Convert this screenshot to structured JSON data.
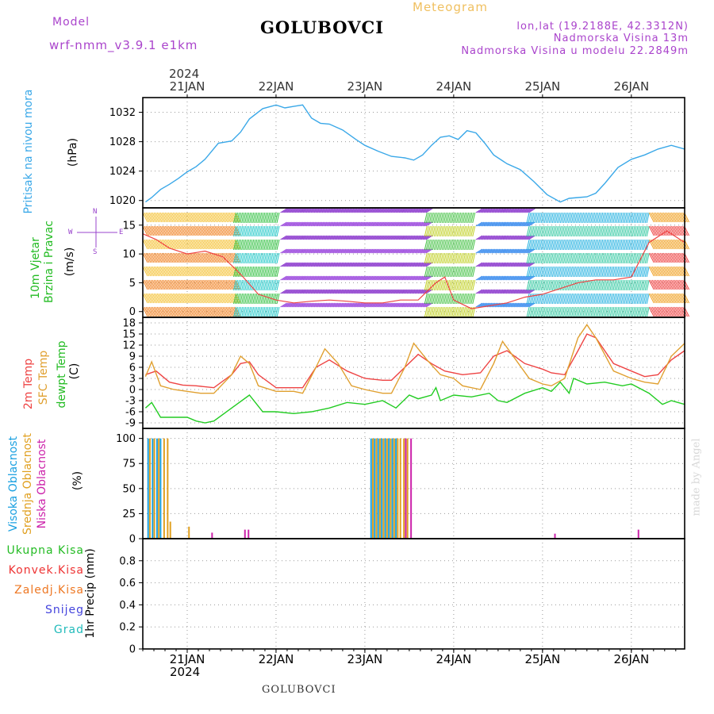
{
  "header": {
    "model_label": "Model",
    "model_name": "wrf-nmm_v3.9.1 e1km",
    "station": "GOLUBOVCI",
    "meteogram": "Meteogram",
    "lonlat": "lon,lat (19.2188E, 42.3312N)",
    "altitude": "Nadmorska Visina 13m",
    "model_altitude": "Nadmorska Visina u modelu 22.2849m",
    "footer_station": "GOLUBOVCI",
    "credit": "made by Angel"
  },
  "time_axis": {
    "year": "2024",
    "day_labels": [
      "21JAN",
      "22JAN",
      "23JAN",
      "24JAN",
      "25JAN",
      "26JAN"
    ],
    "day_positions": [
      1,
      2,
      3,
      4,
      5,
      6
    ]
  },
  "panels": {
    "pressure": {
      "title": "Pritisak na nivou mora",
      "unit": "(hPa)"
    },
    "wind": {
      "title1": "10m Vjetar",
      "title2": "Brzina i Pravac",
      "unit": "(m/s)",
      "compass": {
        "n": "N",
        "s": "S",
        "w": "W",
        "e": "E"
      }
    },
    "temperature": {
      "title1": "2m Temp",
      "title2": "SFC Temp",
      "title3": "dewpt Temp",
      "unit": "(C)"
    },
    "cloud": {
      "title1": "Visoka Oblacnost",
      "title2": "Srednja Oblacnost",
      "title3": "Niska Oblacnost",
      "unit": "(%)"
    },
    "precip": {
      "legend": [
        "Ukupna Kisa",
        "Konvek.Kisa",
        "Zaledj.Kisa",
        "Snijeg",
        "Grad"
      ],
      "axis_label": "1hr Precip (mm)"
    }
  },
  "colors": {
    "pressure": "#3aa8e8",
    "temp2m": "#ee4444",
    "sfc": "#e0a030",
    "dew": "#22cc22",
    "high_cloud": "#1aa0e0",
    "mid_cloud": "#e0a020",
    "low_cloud": "#cc22aa",
    "purple": "#9944cc",
    "total_rain": "#22bb22",
    "conv_rain": "#ee3333",
    "frz_rain": "#ee7722",
    "snow": "#4444dd",
    "hail": "#22bbbb"
  },
  "chart_data": [
    {
      "type": "line",
      "panel": "pressure",
      "title": "",
      "ylabel": "Pritisak na nivou mora (hPa)",
      "ylim": [
        1019,
        1034
      ],
      "yticks": [
        1020,
        1024,
        1028,
        1032
      ],
      "series": [
        {
          "x": [
            0.53,
            0.6,
            0.7,
            0.8,
            0.9,
            1.0,
            1.1,
            1.2,
            1.35,
            1.5,
            1.6,
            1.7,
            1.85,
            2.0,
            2.1,
            2.2,
            2.3,
            2.4,
            2.5,
            2.6,
            2.75,
            2.9,
            3.0,
            3.15,
            3.3,
            3.45,
            3.55,
            3.65,
            3.75,
            3.85,
            3.95,
            4.05,
            4.15,
            4.25,
            4.35,
            4.45,
            4.6,
            4.75,
            4.9,
            5.05,
            5.2,
            5.3,
            5.4,
            5.5,
            5.6,
            5.7,
            5.85,
            6.0,
            6.15,
            6.3,
            6.45,
            6.6
          ],
          "values": [
            1019.8,
            1020.4,
            1021.5,
            1022.2,
            1023.0,
            1023.9,
            1024.6,
            1025.6,
            1027.8,
            1028.1,
            1029.3,
            1031.1,
            1032.5,
            1033.0,
            1032.6,
            1032.8,
            1033.0,
            1031.2,
            1030.5,
            1030.4,
            1029.6,
            1028.3,
            1027.5,
            1026.7,
            1026.0,
            1025.8,
            1025.5,
            1026.2,
            1027.5,
            1028.6,
            1028.8,
            1028.3,
            1029.5,
            1029.2,
            1027.8,
            1026.2,
            1025.0,
            1024.2,
            1022.6,
            1020.8,
            1019.8,
            1020.3,
            1020.4,
            1020.5,
            1021.0,
            1022.3,
            1024.5,
            1025.6,
            1026.2,
            1027.0,
            1027.5,
            1027.0
          ],
          "color": "#3aa8e8"
        }
      ]
    },
    {
      "type": "line",
      "panel": "wind",
      "title": "",
      "ylabel": "10m Vjetar Brzina i Pravac (m/s)",
      "ylim": [
        -1,
        18
      ],
      "yticks": [
        0,
        5,
        10,
        15
      ],
      "series": [
        {
          "x": [
            0.5,
            0.65,
            0.8,
            1.0,
            1.2,
            1.4,
            1.6,
            1.8,
            2.0,
            2.2,
            2.4,
            2.6,
            2.8,
            3.0,
            3.2,
            3.4,
            3.6,
            3.8,
            3.9,
            4.0,
            4.2,
            4.4,
            4.6,
            4.8,
            5.0,
            5.2,
            5.4,
            5.6,
            5.8,
            6.0,
            6.2,
            6.4,
            6.6
          ],
          "values": [
            13.5,
            12.5,
            11.0,
            10.0,
            10.5,
            9.5,
            6.5,
            3.0,
            2.0,
            1.5,
            1.8,
            2.0,
            1.8,
            1.5,
            1.5,
            2.0,
            2.0,
            5.0,
            6.0,
            2.0,
            0.5,
            1.0,
            1.5,
            2.5,
            3.0,
            4.0,
            5.0,
            5.5,
            5.5,
            6.0,
            12.0,
            14.0,
            12.0
          ],
          "color": "#ee4444"
        }
      ]
    },
    {
      "type": "line",
      "panel": "temperature",
      "title": "",
      "ylabel": "2m Temp / SFC Temp / dewpt Temp (C)",
      "ylim": [
        -10.5,
        19.5
      ],
      "yticks": [
        -9,
        -6,
        -3,
        0,
        3,
        6,
        9,
        12,
        15,
        18
      ],
      "series": [
        {
          "name": "2m Temp",
          "x": [
            0.53,
            0.65,
            0.8,
            0.95,
            1.1,
            1.3,
            1.5,
            1.6,
            1.7,
            1.8,
            2.0,
            2.2,
            2.3,
            2.45,
            2.6,
            2.8,
            3.0,
            3.2,
            3.3,
            3.45,
            3.6,
            3.75,
            3.9,
            4.1,
            4.3,
            4.45,
            4.6,
            4.8,
            5.0,
            5.1,
            5.25,
            5.4,
            5.5,
            5.6,
            5.8,
            6.0,
            6.15,
            6.3,
            6.45,
            6.6
          ],
          "values": [
            4.0,
            5.0,
            2.0,
            1.2,
            1.0,
            0.5,
            4.0,
            7.0,
            7.5,
            4.0,
            0.5,
            0.5,
            0.5,
            6.0,
            8.0,
            5.0,
            3.0,
            2.5,
            2.5,
            6.0,
            9.5,
            7.0,
            5.0,
            4.0,
            4.5,
            9.0,
            10.5,
            7.0,
            5.5,
            4.5,
            4.0,
            10.5,
            15.0,
            14.0,
            7.0,
            5.0,
            3.5,
            4.0,
            8.0,
            10.5
          ],
          "color": "#ee4444"
        },
        {
          "name": "SFC Temp",
          "x": [
            0.53,
            0.6,
            0.7,
            0.85,
            1.0,
            1.15,
            1.3,
            1.5,
            1.6,
            1.7,
            1.8,
            2.0,
            2.2,
            2.3,
            2.45,
            2.55,
            2.7,
            2.85,
            3.0,
            3.2,
            3.3,
            3.45,
            3.55,
            3.7,
            3.85,
            4.0,
            4.1,
            4.3,
            4.45,
            4.55,
            4.7,
            4.85,
            5.0,
            5.1,
            5.25,
            5.4,
            5.5,
            5.6,
            5.8,
            6.0,
            6.15,
            6.3,
            6.45,
            6.6
          ],
          "values": [
            3.5,
            7.5,
            1.0,
            0.0,
            -0.5,
            -1.0,
            -1.0,
            4.0,
            9.0,
            7.0,
            1.0,
            -0.5,
            -0.5,
            -1.0,
            6.0,
            11.0,
            7.0,
            1.0,
            0.0,
            -1.0,
            -1.0,
            6.0,
            12.5,
            8.0,
            4.0,
            3.0,
            1.0,
            0.0,
            7.0,
            13.0,
            8.0,
            3.0,
            1.5,
            1.0,
            3.0,
            14.0,
            17.5,
            14.0,
            5.0,
            3.0,
            2.0,
            1.5,
            9.0,
            12.5
          ],
          "color": "#e0a030"
        },
        {
          "name": "dewpt Temp",
          "x": [
            0.53,
            0.6,
            0.7,
            0.85,
            1.0,
            1.1,
            1.2,
            1.3,
            1.5,
            1.7,
            1.85,
            2.0,
            2.2,
            2.4,
            2.6,
            2.8,
            3.0,
            3.2,
            3.35,
            3.5,
            3.6,
            3.75,
            3.8,
            3.85,
            4.0,
            4.2,
            4.4,
            4.5,
            4.6,
            4.8,
            5.0,
            5.1,
            5.2,
            5.3,
            5.35,
            5.5,
            5.7,
            5.9,
            6.0,
            6.2,
            6.35,
            6.45,
            6.6
          ],
          "values": [
            -5.0,
            -3.5,
            -7.5,
            -7.5,
            -7.5,
            -8.5,
            -9.0,
            -8.5,
            -5.0,
            -1.5,
            -6.0,
            -6.0,
            -6.5,
            -6.0,
            -5.0,
            -3.5,
            -4.0,
            -3.0,
            -5.0,
            -1.5,
            -2.5,
            -1.5,
            0.5,
            -3.0,
            -1.5,
            -2.0,
            -1.0,
            -3.0,
            -3.5,
            -1.0,
            0.5,
            -0.5,
            2.0,
            -1.0,
            3.0,
            1.5,
            2.0,
            1.0,
            1.5,
            -1.0,
            -4.0,
            -3.0,
            -4.0
          ],
          "color": "#22cc22"
        }
      ]
    },
    {
      "type": "bar",
      "panel": "cloud",
      "title": "",
      "ylabel": "Visoka / Srednja / Niska Oblacnost (%)",
      "ylim": [
        0,
        110
      ],
      "yticks": [
        0,
        25,
        50,
        75,
        100
      ],
      "series": [
        {
          "name": "Visoka Oblacnost",
          "color": "#1aa0e0",
          "x": [
            0.56,
            0.61,
            0.66,
            0.7,
            3.07,
            3.11,
            3.15,
            3.19,
            3.23,
            3.27,
            3.31,
            3.35
          ],
          "values": [
            100,
            100,
            100,
            100,
            100,
            100,
            100,
            100,
            100,
            100,
            100,
            100
          ]
        },
        {
          "name": "Srednja Oblacnost",
          "color": "#e0a020",
          "x": [
            0.58,
            0.63,
            0.68,
            0.74,
            0.78,
            0.81,
            1.02,
            3.09,
            3.13,
            3.17,
            3.21,
            3.25,
            3.29,
            3.33,
            3.37,
            3.4,
            3.44,
            3.48
          ],
          "values": [
            100,
            100,
            100,
            100,
            100,
            17,
            12,
            100,
            100,
            100,
            100,
            100,
            100,
            100,
            100,
            100,
            100,
            100
          ]
        },
        {
          "name": "Niska Oblacnost",
          "color": "#cc22aa",
          "x": [
            1.28,
            1.65,
            1.69,
            3.46,
            3.52,
            5.14,
            6.08
          ],
          "values": [
            6,
            9,
            9,
            100,
            100,
            5,
            9
          ]
        }
      ]
    },
    {
      "type": "bar",
      "panel": "precip",
      "title": "",
      "ylabel": "1hr Precip (mm)",
      "ylim": [
        0,
        1.0
      ],
      "yticks": [
        0,
        0.2,
        0.4,
        0.6,
        0.8
      ],
      "series": [
        {
          "name": "Ukupna Kisa",
          "values": []
        },
        {
          "name": "Konvek.Kisa",
          "values": []
        },
        {
          "name": "Zaledj.Kisa",
          "values": []
        },
        {
          "name": "Snijeg",
          "values": []
        },
        {
          "name": "Grad",
          "values": []
        }
      ]
    }
  ]
}
